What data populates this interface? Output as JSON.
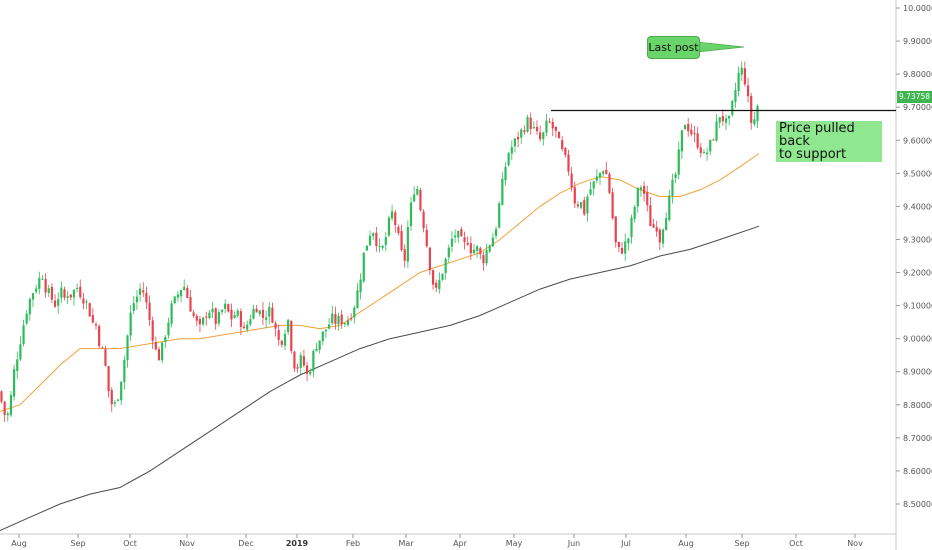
{
  "chart_data": {
    "type": "candlestick",
    "y_ticks": [
      "10.00000",
      "9.90000",
      "9.80000",
      "9.70000",
      "9.60000",
      "9.50000",
      "9.40000",
      "9.30000",
      "9.20000",
      "9.10000",
      "9.00000",
      "8.90000",
      "8.80000",
      "8.70000",
      "8.60000",
      "8.50000"
    ],
    "x_ticks": [
      "Aug",
      "Sep",
      "Oct",
      "Nov",
      "Dec",
      "2019",
      "Feb",
      "Mar",
      "Apr",
      "May",
      "Jun",
      "Jul",
      "Aug",
      "Sep",
      "Oct",
      "Nov"
    ],
    "ylim": [
      8.4,
      10.02
    ],
    "last_price": "9.73758",
    "support_level": 9.69,
    "close_path": [
      [
        0,
        8.84
      ],
      [
        3,
        8.78
      ],
      [
        7,
        8.76
      ],
      [
        10,
        8.8
      ],
      [
        14,
        8.9
      ],
      [
        18,
        8.96
      ],
      [
        22,
        9.02
      ],
      [
        26,
        9.08
      ],
      [
        30,
        9.12
      ],
      [
        34,
        9.15
      ],
      [
        38,
        9.17
      ],
      [
        42,
        9.2
      ],
      [
        45,
        9.16
      ],
      [
        48,
        9.14
      ],
      [
        52,
        9.12
      ],
      [
        56,
        9.1
      ],
      [
        60,
        9.15
      ],
      [
        64,
        9.12
      ],
      [
        68,
        9.14
      ],
      [
        72,
        9.13
      ],
      [
        76,
        9.16
      ],
      [
        80,
        9.14
      ],
      [
        84,
        9.12
      ],
      [
        88,
        9.1
      ],
      [
        92,
        9.05
      ],
      [
        96,
        9.04
      ],
      [
        100,
        8.98
      ],
      [
        104,
        8.95
      ],
      [
        108,
        8.85
      ],
      [
        112,
        8.8
      ],
      [
        116,
        8.8
      ],
      [
        120,
        8.86
      ],
      [
        124,
        8.93
      ],
      [
        128,
        9.02
      ],
      [
        132,
        9.1
      ],
      [
        136,
        9.12
      ],
      [
        140,
        9.15
      ],
      [
        144,
        9.14
      ],
      [
        148,
        9.08
      ],
      [
        152,
        9.02
      ],
      [
        156,
        8.96
      ],
      [
        160,
        8.94
      ],
      [
        164,
        9.0
      ],
      [
        168,
        9.05
      ],
      [
        172,
        9.1
      ],
      [
        176,
        9.12
      ],
      [
        180,
        9.15
      ],
      [
        184,
        9.16
      ],
      [
        188,
        9.12
      ],
      [
        192,
        9.08
      ],
      [
        196,
        9.05
      ],
      [
        200,
        9.03
      ],
      [
        204,
        9.06
      ],
      [
        208,
        9.09
      ],
      [
        212,
        9.08
      ],
      [
        216,
        9.05
      ],
      [
        220,
        9.07
      ],
      [
        224,
        9.1
      ],
      [
        228,
        9.08
      ],
      [
        232,
        9.06
      ],
      [
        236,
        9.08
      ],
      [
        240,
        9.06
      ],
      [
        244,
        9.02
      ],
      [
        248,
        9.05
      ],
      [
        252,
        9.08
      ],
      [
        256,
        9.1
      ],
      [
        260,
        9.08
      ],
      [
        264,
        9.06
      ],
      [
        268,
        9.09
      ],
      [
        272,
        9.07
      ],
      [
        276,
        9.02
      ],
      [
        280,
        8.98
      ],
      [
        284,
        9.02
      ],
      [
        288,
        9.06
      ],
      [
        292,
        8.96
      ],
      [
        296,
        8.9
      ],
      [
        300,
        8.94
      ],
      [
        304,
        8.92
      ],
      [
        308,
        8.88
      ],
      [
        312,
        8.94
      ],
      [
        316,
        8.98
      ],
      [
        320,
        9.0
      ],
      [
        324,
        9.02
      ],
      [
        328,
        9.04
      ],
      [
        332,
        9.06
      ],
      [
        336,
        9.05
      ],
      [
        340,
        9.06
      ],
      [
        344,
        9.05
      ],
      [
        348,
        9.06
      ],
      [
        352,
        9.08
      ],
      [
        356,
        9.12
      ],
      [
        360,
        9.18
      ],
      [
        364,
        9.26
      ],
      [
        368,
        9.3
      ],
      [
        372,
        9.34
      ],
      [
        376,
        9.3
      ],
      [
        380,
        9.26
      ],
      [
        384,
        9.28
      ],
      [
        388,
        9.34
      ],
      [
        392,
        9.38
      ],
      [
        396,
        9.34
      ],
      [
        400,
        9.28
      ],
      [
        404,
        9.22
      ],
      [
        408,
        9.34
      ],
      [
        412,
        9.42
      ],
      [
        416,
        9.48
      ],
      [
        420,
        9.4
      ],
      [
        424,
        9.34
      ],
      [
        428,
        9.26
      ],
      [
        432,
        9.18
      ],
      [
        436,
        9.14
      ],
      [
        440,
        9.18
      ],
      [
        444,
        9.22
      ],
      [
        448,
        9.26
      ],
      [
        452,
        9.3
      ],
      [
        456,
        9.32
      ],
      [
        460,
        9.3
      ],
      [
        464,
        9.28
      ],
      [
        468,
        9.3
      ],
      [
        472,
        9.26
      ],
      [
        476,
        9.28
      ],
      [
        480,
        9.25
      ],
      [
        484,
        9.24
      ],
      [
        488,
        9.28
      ],
      [
        492,
        9.3
      ],
      [
        496,
        9.34
      ],
      [
        500,
        9.42
      ],
      [
        504,
        9.5
      ],
      [
        508,
        9.56
      ],
      [
        512,
        9.58
      ],
      [
        516,
        9.6
      ],
      [
        520,
        9.62
      ],
      [
        524,
        9.64
      ],
      [
        528,
        9.66
      ],
      [
        532,
        9.64
      ],
      [
        536,
        9.62
      ],
      [
        540,
        9.6
      ],
      [
        544,
        9.62
      ],
      [
        548,
        9.66
      ],
      [
        552,
        9.64
      ],
      [
        556,
        9.62
      ],
      [
        560,
        9.58
      ],
      [
        564,
        9.55
      ],
      [
        568,
        9.52
      ],
      [
        572,
        9.46
      ],
      [
        576,
        9.4
      ],
      [
        580,
        9.42
      ],
      [
        584,
        9.38
      ],
      [
        588,
        9.44
      ],
      [
        592,
        9.46
      ],
      [
        596,
        9.48
      ],
      [
        600,
        9.5
      ],
      [
        604,
        9.52
      ],
      [
        608,
        9.48
      ],
      [
        612,
        9.38
      ],
      [
        616,
        9.28
      ],
      [
        620,
        9.26
      ],
      [
        624,
        9.28
      ],
      [
        628,
        9.3
      ],
      [
        632,
        9.36
      ],
      [
        636,
        9.42
      ],
      [
        640,
        9.47
      ],
      [
        644,
        9.44
      ],
      [
        648,
        9.38
      ],
      [
        652,
        9.33
      ],
      [
        656,
        9.35
      ],
      [
        660,
        9.3
      ],
      [
        664,
        9.36
      ],
      [
        668,
        9.4
      ],
      [
        672,
        9.46
      ],
      [
        676,
        9.5
      ],
      [
        680,
        9.58
      ],
      [
        684,
        9.66
      ],
      [
        688,
        9.64
      ],
      [
        692,
        9.62
      ],
      [
        696,
        9.6
      ],
      [
        700,
        9.58
      ],
      [
        704,
        9.55
      ],
      [
        708,
        9.57
      ],
      [
        712,
        9.6
      ],
      [
        716,
        9.64
      ],
      [
        720,
        9.68
      ],
      [
        724,
        9.66
      ],
      [
        728,
        9.64
      ],
      [
        732,
        9.7
      ],
      [
        736,
        9.76
      ],
      [
        740,
        9.82
      ],
      [
        744,
        9.8
      ],
      [
        748,
        9.72
      ],
      [
        752,
        9.64
      ],
      [
        756,
        9.68
      ],
      [
        759,
        9.73
      ]
    ],
    "ma_50_path": [
      [
        0,
        8.78
      ],
      [
        20,
        8.8
      ],
      [
        40,
        8.86
      ],
      [
        60,
        8.92
      ],
      [
        80,
        8.97
      ],
      [
        100,
        8.97
      ],
      [
        120,
        8.97
      ],
      [
        140,
        8.98
      ],
      [
        160,
        8.99
      ],
      [
        180,
        9.0
      ],
      [
        200,
        9.0
      ],
      [
        220,
        9.01
      ],
      [
        240,
        9.02
      ],
      [
        260,
        9.03
      ],
      [
        280,
        9.04
      ],
      [
        300,
        9.04
      ],
      [
        320,
        9.03
      ],
      [
        340,
        9.04
      ],
      [
        360,
        9.08
      ],
      [
        380,
        9.12
      ],
      [
        400,
        9.16
      ],
      [
        420,
        9.2
      ],
      [
        440,
        9.22
      ],
      [
        460,
        9.24
      ],
      [
        480,
        9.26
      ],
      [
        500,
        9.3
      ],
      [
        520,
        9.35
      ],
      [
        540,
        9.4
      ],
      [
        560,
        9.44
      ],
      [
        580,
        9.47
      ],
      [
        600,
        9.49
      ],
      [
        620,
        9.48
      ],
      [
        640,
        9.45
      ],
      [
        660,
        9.43
      ],
      [
        680,
        9.43
      ],
      [
        700,
        9.45
      ],
      [
        720,
        9.48
      ],
      [
        740,
        9.52
      ],
      [
        759,
        9.56
      ]
    ],
    "ma_200_path": [
      [
        0,
        8.42
      ],
      [
        30,
        8.46
      ],
      [
        60,
        8.5
      ],
      [
        90,
        8.53
      ],
      [
        120,
        8.55
      ],
      [
        150,
        8.6
      ],
      [
        180,
        8.66
      ],
      [
        210,
        8.72
      ],
      [
        240,
        8.78
      ],
      [
        270,
        8.84
      ],
      [
        300,
        8.89
      ],
      [
        330,
        8.93
      ],
      [
        360,
        8.97
      ],
      [
        390,
        9.0
      ],
      [
        420,
        9.02
      ],
      [
        450,
        9.04
      ],
      [
        480,
        9.07
      ],
      [
        510,
        9.11
      ],
      [
        540,
        9.15
      ],
      [
        570,
        9.18
      ],
      [
        600,
        9.2
      ],
      [
        630,
        9.22
      ],
      [
        660,
        9.25
      ],
      [
        690,
        9.27
      ],
      [
        720,
        9.3
      ],
      [
        759,
        9.34
      ]
    ],
    "annotations": [
      {
        "text": "Last post"
      },
      {
        "text": "Price pulled back\nto support"
      }
    ]
  }
}
